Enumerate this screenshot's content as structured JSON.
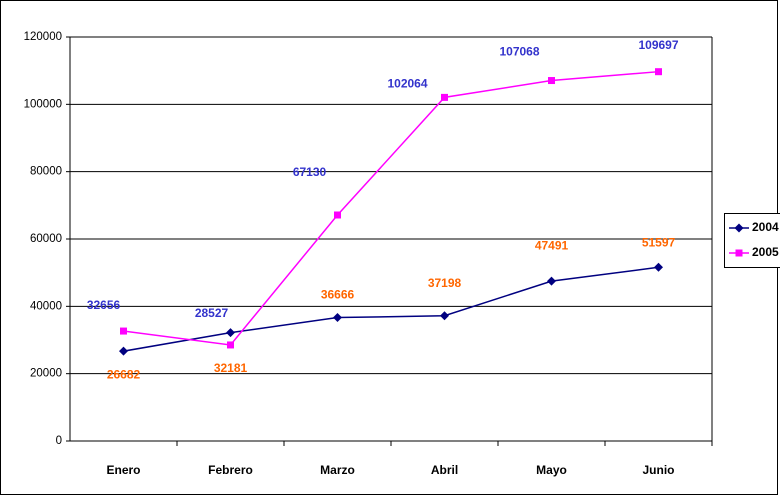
{
  "chart_data": {
    "type": "line",
    "categories": [
      "Enero",
      "Febrero",
      "Marzo",
      "Abril",
      "Mayo",
      "Junio"
    ],
    "series": [
      {
        "name": "2004",
        "color": "#000080",
        "marker": "diamond",
        "label_color": "#ff6600",
        "values": [
          26682,
          32181,
          36666,
          37198,
          47491,
          51597
        ]
      },
      {
        "name": "2005",
        "color": "#ff00ff",
        "marker": "square",
        "label_color": "#3333cc",
        "values": [
          32656,
          28527,
          67130,
          102064,
          107068,
          109697
        ]
      }
    ],
    "ylim": [
      0,
      120000
    ],
    "yticks": [
      0,
      20000,
      40000,
      60000,
      80000,
      100000,
      120000
    ],
    "grid": true,
    "legend": "right"
  }
}
